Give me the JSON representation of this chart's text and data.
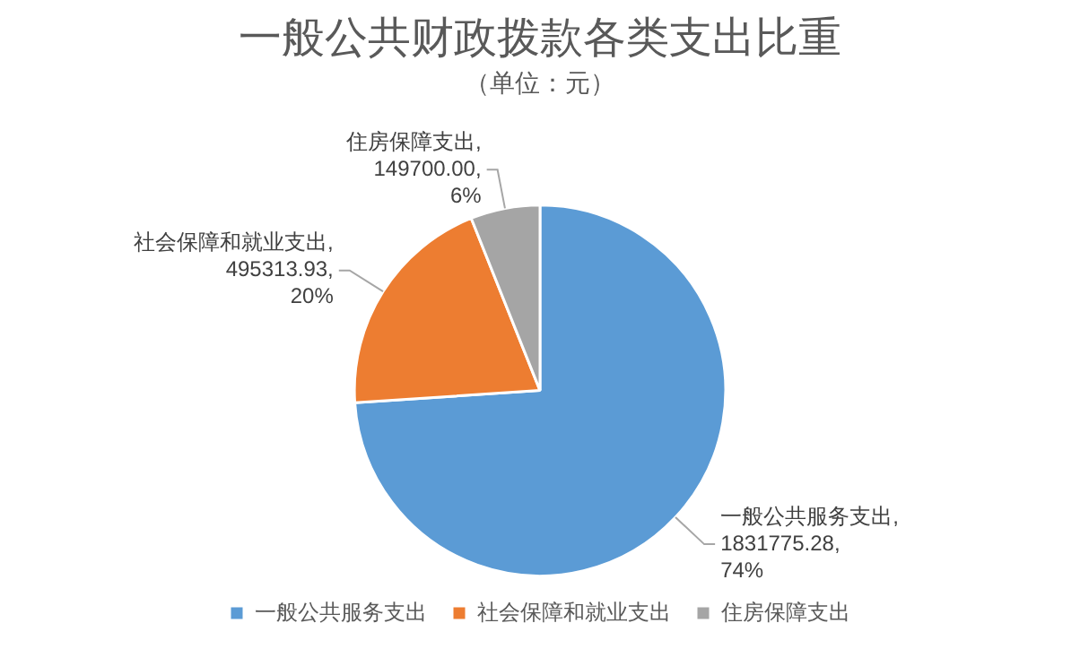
{
  "chart_data": {
    "type": "pie",
    "title": "一般公共财政拨款各类支出比重",
    "subtitle": "（单位：元）",
    "categories": [
      "一般公共服务支出",
      "社会保障和就业支出",
      "住房保障支出"
    ],
    "values": [
      1831775.28,
      495313.93,
      149700.0
    ],
    "colors": [
      "#5b9bd5",
      "#ed7d31",
      "#a5a5a5"
    ],
    "value_labels": [
      "一般公共服务支出, 1831775.28, 74%",
      "社会保障和就业支出, 495313.93, 20%",
      "住房保障支出, 149700.00, 6%"
    ],
    "legend": "bottom"
  }
}
